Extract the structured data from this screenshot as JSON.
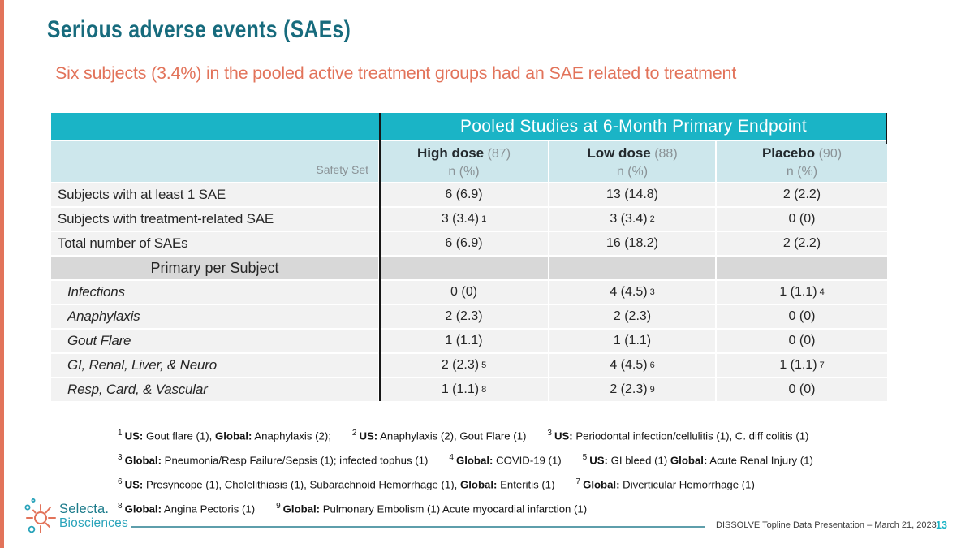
{
  "slide": {
    "title": "Serious adverse events (SAEs)",
    "subtitle": "Six subjects (3.4%) in the pooled active treatment groups had an SAE related to treatment"
  },
  "colors": {
    "teal_banner": "#1ab4c6",
    "dark_teal_title": "#176b7d",
    "coral_accent": "#e2735a",
    "header_bg": "#cde7ec",
    "row_bg": "#f2f2f2",
    "section_row_bg": "#d8d8d8"
  },
  "table": {
    "banner": "Pooled Studies at 6-Month Primary Endpoint",
    "corner_label": "Safety Set",
    "columns": [
      {
        "name": "High dose",
        "n": "(87)",
        "sub": "n (%)"
      },
      {
        "name": "Low dose",
        "n": "(88)",
        "sub": "n (%)"
      },
      {
        "name": "Placebo",
        "n": "(90)",
        "sub": "n (%)"
      }
    ],
    "rows": [
      {
        "label": "Subjects with at least 1 SAE",
        "italic": false,
        "cells": [
          {
            "v": "6 (6.9)"
          },
          {
            "v": "13 (14.8)"
          },
          {
            "v": "2 (2.2)"
          }
        ]
      },
      {
        "label": "Subjects with treatment-related SAE",
        "italic": false,
        "cells": [
          {
            "v": "3 (3.4)",
            "s": "1"
          },
          {
            "v": "3 (3.4)",
            "s": "2"
          },
          {
            "v": "0 (0)"
          }
        ]
      },
      {
        "label": "Total number of SAEs",
        "italic": false,
        "cells": [
          {
            "v": "6 (6.9)"
          },
          {
            "v": "16 (18.2)"
          },
          {
            "v": "2 (2.2)"
          }
        ]
      },
      {
        "type": "section",
        "label": "Primary per Subject"
      },
      {
        "label": "Infections",
        "italic": true,
        "cells": [
          {
            "v": "0 (0)"
          },
          {
            "v": "4 (4.5)",
            "s": "3"
          },
          {
            "v": "1 (1.1)",
            "s": "4"
          }
        ]
      },
      {
        "label": "Anaphylaxis",
        "italic": true,
        "cells": [
          {
            "v": "2 (2.3)"
          },
          {
            "v": "2 (2.3)"
          },
          {
            "v": "0 (0)"
          }
        ]
      },
      {
        "label": "Gout Flare",
        "italic": true,
        "cells": [
          {
            "v": "1 (1.1)"
          },
          {
            "v": "1 (1.1)"
          },
          {
            "v": "0 (0)"
          }
        ]
      },
      {
        "label": "GI, Renal, Liver, & Neuro",
        "italic": true,
        "cells": [
          {
            "v": "2 (2.3)",
            "s": "5"
          },
          {
            "v": "4 (4.5)",
            "s": "6"
          },
          {
            "v": "1 (1.1)",
            "s": "7"
          }
        ]
      },
      {
        "label": "Resp, Card, & Vascular",
        "italic": true,
        "cells": [
          {
            "v": "1 (1.1)",
            "s": "8"
          },
          {
            "v": "2 (2.3)",
            "s": "9"
          },
          {
            "v": "0 (0)"
          }
        ]
      }
    ]
  },
  "footnotes": [
    {
      "items": [
        {
          "sup": "1",
          "segs": [
            {
              "b": true,
              "t": "US:"
            },
            {
              "t": " Gout flare (1), "
            },
            {
              "b": true,
              "t": "Global:"
            },
            {
              "t": " Anaphylaxis (2);"
            }
          ]
        },
        {
          "sup": "2",
          "segs": [
            {
              "b": true,
              "t": "US:"
            },
            {
              "t": " Anaphylaxis (2), Gout Flare (1)"
            }
          ]
        },
        {
          "sup": "3",
          "segs": [
            {
              "b": true,
              "t": "US:"
            },
            {
              "t": " Periodontal infection/cellulitis (1), C. diff colitis (1)"
            }
          ]
        }
      ]
    },
    {
      "items": [
        {
          "sup": "3",
          "segs": [
            {
              "b": true,
              "t": "Global:"
            },
            {
              "t": " Pneumonia/Resp Failure/Sepsis (1); infected tophus (1)"
            }
          ]
        },
        {
          "sup": "4",
          "segs": [
            {
              "b": true,
              "t": "Global:"
            },
            {
              "t": " COVID-19 (1)"
            }
          ]
        },
        {
          "sup": "5",
          "segs": [
            {
              "b": true,
              "t": "US:"
            },
            {
              "t": " GI bleed (1) "
            },
            {
              "b": true,
              "t": "Global:"
            },
            {
              "t": " Acute Renal Injury (1)"
            }
          ]
        }
      ]
    },
    {
      "items": [
        {
          "sup": "6",
          "segs": [
            {
              "b": true,
              "t": "US:"
            },
            {
              "t": " Presyncope (1), Cholelithiasis (1), Subarachnoid Hemorrhage (1), "
            },
            {
              "b": true,
              "t": "Global:"
            },
            {
              "t": " Enteritis (1)"
            }
          ]
        },
        {
          "sup": "7",
          "segs": [
            {
              "b": true,
              "t": "Global:"
            },
            {
              "t": " Diverticular Hemorrhage (1)"
            }
          ]
        }
      ]
    },
    {
      "items": [
        {
          "sup": "8",
          "segs": [
            {
              "b": true,
              "t": "Global:"
            },
            {
              "t": " Angina Pectoris (1)"
            }
          ]
        },
        {
          "sup": "9",
          "segs": [
            {
              "b": true,
              "t": "Global:"
            },
            {
              "t": " Pulmonary Embolism (1) Acute myocardial infarction (1)"
            }
          ]
        }
      ]
    }
  ],
  "footer": {
    "logo_icon": "sunburst-icon",
    "brand_line1": "Selecta.",
    "brand_line2": "Biosciences",
    "text": "DISSOLVE Topline Data Presentation – March 21, 2023",
    "page": "13"
  }
}
